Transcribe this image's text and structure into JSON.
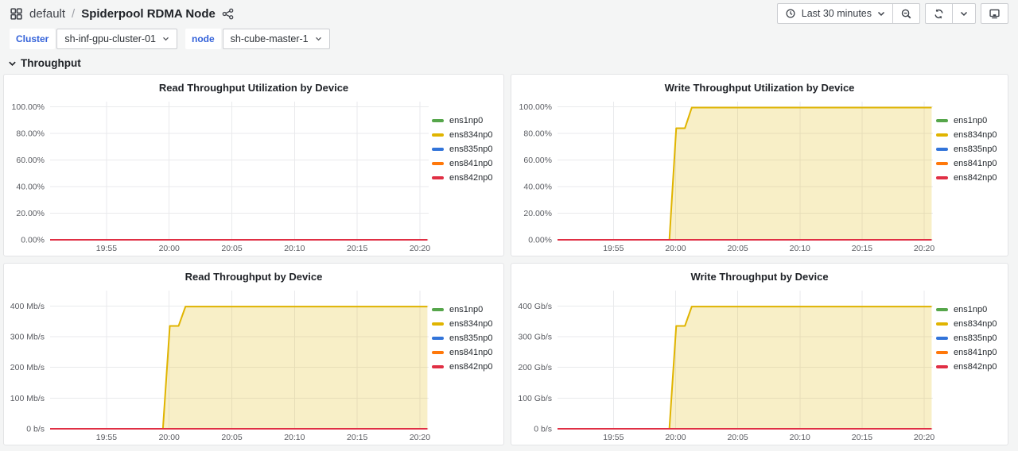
{
  "header": {
    "breadcrumb": {
      "folder": "default",
      "separator": "/",
      "dashboard": "Spiderpool RDMA Node"
    },
    "time_picker": {
      "label": "Last 30 minutes"
    },
    "icons": {
      "apps_grid": "apps-grid-icon (four squares)",
      "share": "share-alt-icon (three linked dots)",
      "clock": "clock-icon",
      "caret": "chevron-down-icon",
      "zoom_out": "magnifier-minus-icon",
      "refresh": "refresh-icon (circular arrows)",
      "kiosk": "monitor-icon"
    }
  },
  "variables": [
    {
      "label": "Cluster",
      "value": "sh-inf-gpu-cluster-01"
    },
    {
      "label": "node",
      "value": "sh-cube-master-1"
    }
  ],
  "section": {
    "title": "Throughput",
    "state": "expanded"
  },
  "palette": {
    "green": "#56A64B",
    "yellow": "#E0B400",
    "blue": "#3274D9",
    "orange": "#FF780A",
    "red": "#E02F44",
    "grid": "#E9EAEC",
    "fill_opacity": 0.22
  },
  "chart_data": [
    {
      "type": "line",
      "title": "Read Throughput Utilization by Device",
      "unit": "percent",
      "grid": true,
      "legend_position": "right",
      "x_unit": "minutes after 19:00",
      "x_range": [
        50.5,
        80.7
      ],
      "x_ticks": [
        {
          "t": 55,
          "label": "19:55"
        },
        {
          "t": 60,
          "label": "20:00"
        },
        {
          "t": 65,
          "label": "20:05"
        },
        {
          "t": 70,
          "label": "20:10"
        },
        {
          "t": 75,
          "label": "20:15"
        },
        {
          "t": 80,
          "label": "20:20"
        }
      ],
      "y_max": 104,
      "y_ticks": [
        {
          "v": 0,
          "label": "0.00%"
        },
        {
          "v": 20,
          "label": "20.00%"
        },
        {
          "v": 40,
          "label": "40.00%"
        },
        {
          "v": 60,
          "label": "60.00%"
        },
        {
          "v": 80,
          "label": "80.00%"
        },
        {
          "v": 100,
          "label": "100.00%"
        }
      ],
      "series": [
        {
          "name": "ens1np0",
          "color": "#56A64B",
          "points": [
            [
              50.5,
              0
            ],
            [
              80.6,
              0
            ]
          ]
        },
        {
          "name": "ens834np0",
          "color": "#E0B400",
          "points": [
            [
              50.5,
              0
            ],
            [
              80.6,
              0
            ]
          ]
        },
        {
          "name": "ens835np0",
          "color": "#3274D9",
          "points": [
            [
              50.5,
              0
            ],
            [
              80.6,
              0
            ]
          ]
        },
        {
          "name": "ens841np0",
          "color": "#FF780A",
          "points": [
            [
              50.5,
              0
            ],
            [
              80.6,
              0
            ]
          ]
        },
        {
          "name": "ens842np0",
          "color": "#E02F44",
          "points": [
            [
              50.5,
              0
            ],
            [
              80.6,
              0
            ]
          ]
        }
      ]
    },
    {
      "type": "line",
      "title": "Write Throughput Utilization by Device",
      "unit": "percent",
      "grid": true,
      "legend_position": "right",
      "x_unit": "minutes after 19:00",
      "x_range": [
        50.5,
        80.7
      ],
      "x_ticks": [
        {
          "t": 55,
          "label": "19:55"
        },
        {
          "t": 60,
          "label": "20:00"
        },
        {
          "t": 65,
          "label": "20:05"
        },
        {
          "t": 70,
          "label": "20:10"
        },
        {
          "t": 75,
          "label": "20:15"
        },
        {
          "t": 80,
          "label": "20:20"
        }
      ],
      "y_max": 104,
      "y_ticks": [
        {
          "v": 0,
          "label": "0.00%"
        },
        {
          "v": 20,
          "label": "20.00%"
        },
        {
          "v": 40,
          "label": "40.00%"
        },
        {
          "v": 60,
          "label": "60.00%"
        },
        {
          "v": 80,
          "label": "80.00%"
        },
        {
          "v": 100,
          "label": "100.00%"
        }
      ],
      "series": [
        {
          "name": "ens1np0",
          "color": "#56A64B",
          "points": [
            [
              50.5,
              0
            ],
            [
              80.6,
              0
            ]
          ]
        },
        {
          "name": "ens834np0",
          "color": "#E0B400",
          "fill": true,
          "points": [
            [
              50.5,
              0
            ],
            [
              59.5,
              0
            ],
            [
              60.05,
              84
            ],
            [
              60.75,
              84
            ],
            [
              61.3,
              99.5
            ],
            [
              80.6,
              99.5
            ]
          ]
        },
        {
          "name": "ens835np0",
          "color": "#3274D9",
          "points": [
            [
              50.5,
              0
            ],
            [
              80.6,
              0
            ]
          ]
        },
        {
          "name": "ens841np0",
          "color": "#FF780A",
          "points": [
            [
              50.5,
              0
            ],
            [
              80.6,
              0
            ]
          ]
        },
        {
          "name": "ens842np0",
          "color": "#E02F44",
          "points": [
            [
              50.5,
              0
            ],
            [
              80.6,
              0
            ]
          ]
        }
      ]
    },
    {
      "type": "line",
      "title": "Read Throughput by Device",
      "unit": "Mb/s",
      "grid": true,
      "legend_position": "right",
      "x_unit": "minutes after 19:00",
      "x_range": [
        50.5,
        80.7
      ],
      "x_ticks": [
        {
          "t": 55,
          "label": "19:55"
        },
        {
          "t": 60,
          "label": "20:00"
        },
        {
          "t": 65,
          "label": "20:05"
        },
        {
          "t": 70,
          "label": "20:10"
        },
        {
          "t": 75,
          "label": "20:15"
        },
        {
          "t": 80,
          "label": "20:20"
        }
      ],
      "y_max": 450,
      "y_ticks": [
        {
          "v": 0,
          "label": "0 b/s"
        },
        {
          "v": 100,
          "label": "100 Mb/s"
        },
        {
          "v": 200,
          "label": "200 Mb/s"
        },
        {
          "v": 300,
          "label": "300 Mb/s"
        },
        {
          "v": 400,
          "label": "400 Mb/s"
        }
      ],
      "series": [
        {
          "name": "ens1np0",
          "color": "#56A64B",
          "points": [
            [
              50.5,
              0
            ],
            [
              80.6,
              0
            ]
          ]
        },
        {
          "name": "ens834np0",
          "color": "#E0B400",
          "fill": true,
          "points": [
            [
              50.5,
              0
            ],
            [
              59.5,
              0
            ],
            [
              60.05,
              335
            ],
            [
              60.75,
              335
            ],
            [
              61.3,
              398
            ],
            [
              80.6,
              398
            ]
          ]
        },
        {
          "name": "ens835np0",
          "color": "#3274D9",
          "points": [
            [
              50.5,
              0
            ],
            [
              80.6,
              0
            ]
          ]
        },
        {
          "name": "ens841np0",
          "color": "#FF780A",
          "points": [
            [
              50.5,
              0
            ],
            [
              80.6,
              0
            ]
          ]
        },
        {
          "name": "ens842np0",
          "color": "#E02F44",
          "points": [
            [
              50.5,
              0
            ],
            [
              80.6,
              0
            ]
          ]
        }
      ]
    },
    {
      "type": "line",
      "title": "Write Throughput by Device",
      "unit": "Gb/s",
      "grid": true,
      "legend_position": "right",
      "x_unit": "minutes after 19:00",
      "x_range": [
        50.5,
        80.7
      ],
      "x_ticks": [
        {
          "t": 55,
          "label": "19:55"
        },
        {
          "t": 60,
          "label": "20:00"
        },
        {
          "t": 65,
          "label": "20:05"
        },
        {
          "t": 70,
          "label": "20:10"
        },
        {
          "t": 75,
          "label": "20:15"
        },
        {
          "t": 80,
          "label": "20:20"
        }
      ],
      "y_max": 450,
      "y_ticks": [
        {
          "v": 0,
          "label": "0 b/s"
        },
        {
          "v": 100,
          "label": "100 Gb/s"
        },
        {
          "v": 200,
          "label": "200 Gb/s"
        },
        {
          "v": 300,
          "label": "300 Gb/s"
        },
        {
          "v": 400,
          "label": "400 Gb/s"
        }
      ],
      "series": [
        {
          "name": "ens1np0",
          "color": "#56A64B",
          "points": [
            [
              50.5,
              0
            ],
            [
              80.6,
              0
            ]
          ]
        },
        {
          "name": "ens834np0",
          "color": "#E0B400",
          "fill": true,
          "points": [
            [
              50.5,
              0
            ],
            [
              59.5,
              0
            ],
            [
              60.05,
              335
            ],
            [
              60.75,
              335
            ],
            [
              61.3,
              398
            ],
            [
              80.6,
              398
            ]
          ]
        },
        {
          "name": "ens835np0",
          "color": "#3274D9",
          "points": [
            [
              50.5,
              0
            ],
            [
              80.6,
              0
            ]
          ]
        },
        {
          "name": "ens841np0",
          "color": "#FF780A",
          "points": [
            [
              50.5,
              0
            ],
            [
              80.6,
              0
            ]
          ]
        },
        {
          "name": "ens842np0",
          "color": "#E02F44",
          "points": [
            [
              50.5,
              0
            ],
            [
              80.6,
              0
            ]
          ]
        }
      ]
    }
  ]
}
